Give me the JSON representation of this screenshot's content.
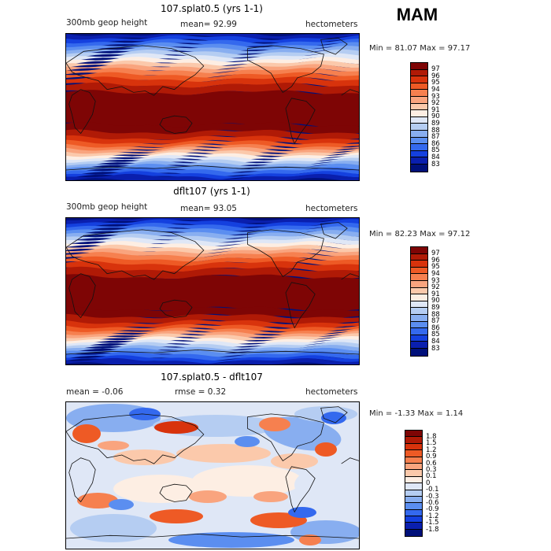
{
  "season": "MAM",
  "panels": [
    {
      "title": "107.splat0.5 (yrs 1-1)",
      "subtitle_left": "300mb geop height",
      "subtitle_mid": "mean=  92.99",
      "subtitle_right": "hectometers",
      "minmax": "Min =  81.07 Max =  97.17",
      "colorbar": {
        "labels": [
          "97",
          "96",
          "95",
          "94",
          "93",
          "92",
          "91",
          "90",
          "89",
          "88",
          "87",
          "86",
          "85",
          "84",
          "83"
        ],
        "colors": [
          "#7e0505",
          "#b01a06",
          "#d8330c",
          "#ee5a25",
          "#f6804f",
          "#f9a47e",
          "#fbc9ab",
          "#fdeee3",
          "#dfe7f6",
          "#b5cdf2",
          "#88aef0",
          "#5b8ef0",
          "#3469ee",
          "#1440df",
          "#0a1fae",
          "#00107a"
        ]
      }
    },
    {
      "title": "dflt107 (yrs 1-1)",
      "subtitle_left": "300mb geop height",
      "subtitle_mid": "mean=  93.05",
      "subtitle_right": "hectometers",
      "minmax": "Min =  82.23 Max =  97.12",
      "colorbar": {
        "labels": [
          "97",
          "96",
          "95",
          "94",
          "93",
          "92",
          "91",
          "90",
          "89",
          "88",
          "87",
          "86",
          "85",
          "84",
          "83"
        ],
        "colors": [
          "#7e0505",
          "#b01a06",
          "#d8330c",
          "#ee5a25",
          "#f6804f",
          "#f9a47e",
          "#fbc9ab",
          "#fdeee3",
          "#dfe7f6",
          "#b5cdf2",
          "#88aef0",
          "#5b8ef0",
          "#3469ee",
          "#1440df",
          "#0a1fae",
          "#00107a"
        ]
      }
    },
    {
      "title": "107.splat0.5 - dflt107",
      "subtitle_left": "mean =  -0.06",
      "subtitle_mid": "rmse =   0.32",
      "subtitle_right": "hectometers",
      "minmax": "Min = -1.33 Max =   1.14",
      "colorbar": {
        "labels": [
          "1.8",
          "1.5",
          "1.2",
          "0.9",
          "0.6",
          "0.3",
          "0.1",
          "0",
          "-0.1",
          "-0.3",
          "-0.6",
          "-0.9",
          "-1.2",
          "-1.5",
          "-1.8"
        ],
        "colors": [
          "#7e0505",
          "#b01a06",
          "#d8330c",
          "#ee5a25",
          "#f6804f",
          "#f9a47e",
          "#fbc9ab",
          "#fdeee3",
          "#dfe7f6",
          "#b5cdf2",
          "#88aef0",
          "#5b8ef0",
          "#3469ee",
          "#1440df",
          "#0a1fae",
          "#00107a"
        ]
      }
    }
  ]
}
